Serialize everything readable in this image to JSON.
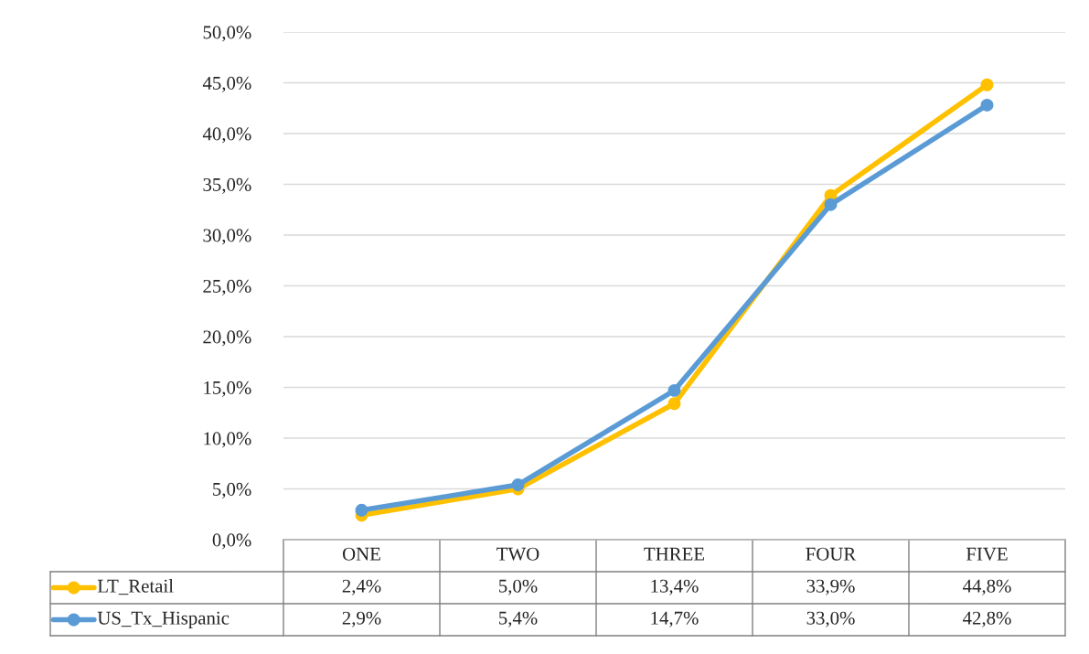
{
  "chart_data": {
    "type": "line",
    "categories": [
      "ONE",
      "TWO",
      "THREE",
      "FOUR",
      "FIVE"
    ],
    "series": [
      {
        "name": "LT_Retail",
        "color": "#ffc000",
        "values": [
          2.4,
          5.0,
          13.4,
          33.9,
          44.8
        ],
        "value_labels": [
          "2,4%",
          "5,0%",
          "13,4%",
          "33,9%",
          "44,8%"
        ]
      },
      {
        "name": "US_Tx_Hispanic",
        "color": "#5b9bd5",
        "values": [
          2.9,
          5.4,
          14.7,
          33.0,
          42.8
        ],
        "value_labels": [
          "2,9%",
          "5,4%",
          "14,7%",
          "33,0%",
          "42,8%"
        ]
      }
    ],
    "ylim": [
      0,
      50
    ],
    "yticks": [
      {
        "value": 0,
        "label": "0,0%"
      },
      {
        "value": 5,
        "label": "5,0%"
      },
      {
        "value": 10,
        "label": "10,0%"
      },
      {
        "value": 15,
        "label": "15,0%"
      },
      {
        "value": 20,
        "label": "20,0%"
      },
      {
        "value": 25,
        "label": "25,0%"
      },
      {
        "value": 30,
        "label": "30,0%"
      },
      {
        "value": 35,
        "label": "35,0%"
      },
      {
        "value": 40,
        "label": "40,0%"
      },
      {
        "value": 45,
        "label": "45,0%"
      },
      {
        "value": 50,
        "label": "50,0%"
      }
    ],
    "grid": "y",
    "marker": "circle",
    "line_style": "solid",
    "legend": "bottom"
  }
}
